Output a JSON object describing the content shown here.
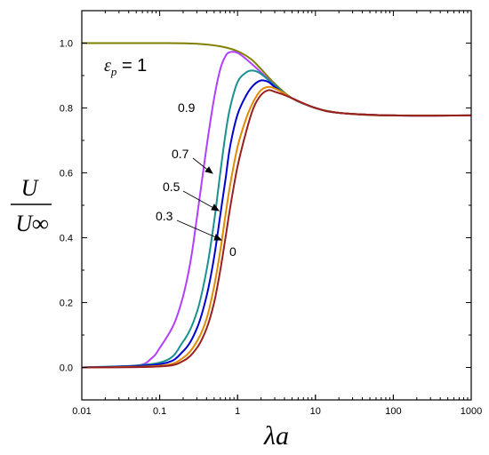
{
  "chart_data": {
    "type": "line",
    "x_scale": "log",
    "xlim": [
      0.01,
      1000
    ],
    "ylim": [
      -0.1,
      1.1
    ],
    "grid": false,
    "xlabel": "λa",
    "ylabel_numerator": "U",
    "ylabel_denominator": "U∞",
    "x_ticks": [
      {
        "value": 0.01,
        "label": "0.01"
      },
      {
        "value": 0.1,
        "label": "0.1"
      },
      {
        "value": 1,
        "label": "1"
      },
      {
        "value": 10,
        "label": "10"
      },
      {
        "value": 100,
        "label": "100"
      },
      {
        "value": 1000,
        "label": "1000"
      }
    ],
    "y_ticks": [
      {
        "value": 0.0,
        "label": "0.0"
      },
      {
        "value": 0.2,
        "label": "0.2"
      },
      {
        "value": 0.4,
        "label": "0.4"
      },
      {
        "value": 0.6,
        "label": "0.6"
      },
      {
        "value": 0.8,
        "label": "0.8"
      },
      {
        "value": 1.0,
        "label": "1.0"
      }
    ],
    "series": [
      {
        "label": "εp = 1",
        "color": "#808000",
        "x": [
          0.01,
          0.03,
          0.1,
          0.3,
          0.6,
          1,
          1.5,
          2,
          3,
          5,
          10,
          20,
          50,
          100,
          1000
        ],
        "y": [
          1.0,
          1.0,
          1.0,
          0.998,
          0.99,
          0.975,
          0.95,
          0.92,
          0.875,
          0.83,
          0.8,
          0.785,
          0.778,
          0.777,
          0.777
        ]
      },
      {
        "label": "0.9",
        "color": "#b040ff",
        "x": [
          0.01,
          0.05,
          0.08,
          0.1,
          0.15,
          0.2,
          0.25,
          0.3,
          0.4,
          0.5,
          0.6,
          0.7,
          0.8,
          1,
          1.3,
          2,
          3,
          5,
          10,
          20,
          100,
          1000
        ],
        "y": [
          0.0,
          0.005,
          0.03,
          0.06,
          0.13,
          0.22,
          0.33,
          0.46,
          0.68,
          0.83,
          0.92,
          0.96,
          0.972,
          0.97,
          0.95,
          0.91,
          0.87,
          0.83,
          0.8,
          0.785,
          0.777,
          0.777
        ]
      },
      {
        "label": "0.7",
        "color": "#1a9090",
        "x": [
          0.01,
          0.1,
          0.2,
          0.3,
          0.4,
          0.5,
          0.6,
          0.7,
          0.8,
          1,
          1.3,
          1.6,
          2,
          3,
          5,
          10,
          20,
          100,
          1000
        ],
        "y": [
          0.0,
          0.015,
          0.08,
          0.17,
          0.3,
          0.45,
          0.6,
          0.72,
          0.8,
          0.88,
          0.91,
          0.915,
          0.905,
          0.87,
          0.83,
          0.8,
          0.785,
          0.777,
          0.777
        ]
      },
      {
        "label": "0.5",
        "color": "#0000d0",
        "x": [
          0.01,
          0.1,
          0.2,
          0.3,
          0.4,
          0.5,
          0.6,
          0.7,
          0.8,
          1,
          1.3,
          1.6,
          2,
          2.5,
          3,
          5,
          10,
          20,
          100,
          1000
        ],
        "y": [
          0.0,
          0.01,
          0.05,
          0.12,
          0.22,
          0.34,
          0.47,
          0.58,
          0.68,
          0.78,
          0.84,
          0.87,
          0.885,
          0.88,
          0.865,
          0.83,
          0.8,
          0.785,
          0.777,
          0.777
        ]
      },
      {
        "label": "0.3",
        "color": "#e08a00",
        "x": [
          0.01,
          0.1,
          0.2,
          0.3,
          0.4,
          0.5,
          0.6,
          0.7,
          0.8,
          1,
          1.3,
          1.6,
          2,
          2.5,
          3,
          4,
          5,
          10,
          20,
          100,
          1000
        ],
        "y": [
          0.0,
          0.005,
          0.03,
          0.08,
          0.15,
          0.25,
          0.36,
          0.47,
          0.56,
          0.68,
          0.77,
          0.82,
          0.855,
          0.865,
          0.86,
          0.845,
          0.83,
          0.8,
          0.785,
          0.777,
          0.777
        ]
      },
      {
        "label": "0",
        "color": "#9a2020",
        "x": [
          0.01,
          0.1,
          0.2,
          0.3,
          0.4,
          0.5,
          0.6,
          0.7,
          0.8,
          1,
          1.3,
          1.6,
          2,
          2.5,
          3,
          4,
          5,
          10,
          20,
          100,
          1000
        ],
        "y": [
          0.0,
          0.003,
          0.02,
          0.06,
          0.12,
          0.2,
          0.3,
          0.4,
          0.49,
          0.62,
          0.73,
          0.8,
          0.84,
          0.855,
          0.85,
          0.84,
          0.83,
          0.8,
          0.785,
          0.777,
          0.777
        ]
      }
    ],
    "annotations": [
      {
        "text": "εp = 1",
        "series": "εp = 1"
      },
      {
        "text": "0.9",
        "series": "0.9"
      },
      {
        "text": "0.7",
        "series": "0.7"
      },
      {
        "text": "0.5",
        "series": "0.5"
      },
      {
        "text": "0.3",
        "series": "0.3"
      },
      {
        "text": "0",
        "series": "0"
      }
    ]
  }
}
